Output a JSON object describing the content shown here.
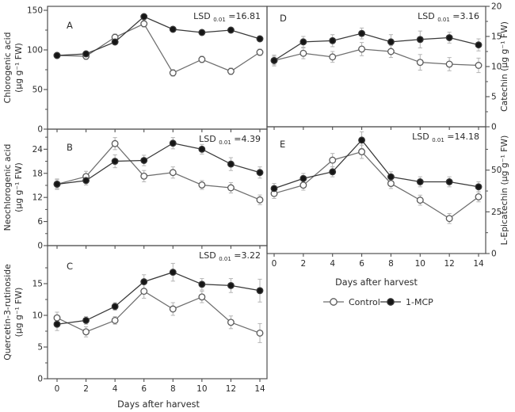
{
  "figure": {
    "background": "#ffffff",
    "x_axis_label": "Days after harvest",
    "x_ticks": [
      0,
      2,
      4,
      6,
      8,
      10,
      12,
      14
    ],
    "legend": [
      {
        "label": "Control",
        "marker": "open-circle"
      },
      {
        "label": "1-MCP",
        "marker": "filled-circle"
      }
    ]
  },
  "colors": {
    "axis": "#4f4f4f",
    "text": "#2b2b2b",
    "control_line": "#6e6e6e",
    "control_fill": "#ffffff",
    "control_stroke": "#5a5a5a",
    "mcp_line": "#383838",
    "mcp_fill": "#161616",
    "error_bar": "#b4b4b4"
  },
  "chart_data": [
    {
      "type": "line",
      "panel": "A",
      "ylabel_lines": [
        "Chlorogenic acid",
        "(µg g⁻¹ FW)"
      ],
      "lsd": {
        "prefix": "LSD",
        "sub": "0.01",
        "value": "=16.81"
      },
      "x": [
        0,
        2,
        4,
        6,
        8,
        10,
        12,
        14
      ],
      "ylim": [
        0,
        155
      ],
      "yticks": [
        0,
        50,
        100,
        150
      ],
      "yminor": [
        25,
        75,
        125
      ],
      "series": [
        {
          "name": "Control",
          "values": [
            93,
            92,
            116,
            133,
            71,
            88,
            73,
            97
          ],
          "err": [
            3,
            4,
            4,
            4,
            4,
            4,
            4,
            4
          ]
        },
        {
          "name": "1-MCP",
          "values": [
            93,
            95,
            110,
            142,
            126,
            122,
            125,
            114
          ],
          "err": [
            3,
            3,
            3,
            3,
            3,
            3,
            3,
            3
          ]
        }
      ]
    },
    {
      "type": "line",
      "panel": "B",
      "ylabel_lines": [
        "Neochlorogenic acid",
        "(µg g⁻¹ FW)"
      ],
      "lsd": {
        "prefix": "LSD",
        "sub": "0.01",
        "value": "=4.39"
      },
      "x": [
        0,
        2,
        4,
        6,
        8,
        10,
        12,
        14
      ],
      "ylim": [
        0,
        29
      ],
      "yticks": [
        0,
        6,
        12,
        18,
        24
      ],
      "yminor": [
        3,
        9,
        15,
        21,
        27
      ],
      "series": [
        {
          "name": "Control",
          "values": [
            15.3,
            17.2,
            25.4,
            17.3,
            18.2,
            15.1,
            14.4,
            11.4
          ],
          "err": [
            1.3,
            1.3,
            1.5,
            1.4,
            1.4,
            1.1,
            1.3,
            1.2
          ]
        },
        {
          "name": "1-MCP",
          "values": [
            15.3,
            16.2,
            21.0,
            21.2,
            25.5,
            24.0,
            20.3,
            18.2
          ],
          "err": [
            1.1,
            1.1,
            1.6,
            1.3,
            1.4,
            1.2,
            1.6,
            1.4
          ]
        }
      ]
    },
    {
      "type": "line",
      "panel": "C",
      "ylabel_lines": [
        "Quercetin-3-rutinoside",
        "(µg g⁻¹ FW)"
      ],
      "lsd": {
        "prefix": "LSD",
        "sub": "0.01",
        "value": "=3.22"
      },
      "x": [
        0,
        2,
        4,
        6,
        8,
        10,
        12,
        14
      ],
      "ylim": [
        0,
        21
      ],
      "yticks": [
        0,
        5,
        10,
        15
      ],
      "yminor": [
        2.5,
        7.5,
        12.5,
        17.5
      ],
      "series": [
        {
          "name": "Control",
          "values": [
            9.6,
            7.4,
            9.2,
            13.8,
            11.0,
            12.9,
            8.9,
            7.2
          ],
          "err": [
            0.9,
            0.8,
            0.6,
            1.1,
            1.0,
            0.9,
            1.0,
            1.5
          ]
        },
        {
          "name": "1-MCP",
          "values": [
            8.6,
            9.2,
            11.4,
            15.3,
            16.8,
            14.9,
            14.7,
            13.9
          ],
          "err": [
            1.0,
            0.6,
            0.6,
            1.1,
            1.4,
            0.9,
            1.1,
            1.8
          ]
        }
      ]
    },
    {
      "type": "line",
      "panel": "D",
      "ylabel_lines": [
        "Catechin (µg g⁻¹ FW)"
      ],
      "lsd": {
        "prefix": "LSD",
        "sub": "0.01",
        "value": "=3.16"
      },
      "x": [
        0,
        2,
        4,
        6,
        8,
        10,
        12,
        14
      ],
      "ylim": [
        0,
        20
      ],
      "yticks": [
        0,
        5,
        10,
        15,
        20
      ],
      "yminor": [
        2.5,
        7.5,
        12.5,
        17.5
      ],
      "series": [
        {
          "name": "Control",
          "values": [
            11.0,
            12.2,
            11.6,
            12.9,
            12.5,
            10.7,
            10.4,
            10.2
          ],
          "err": [
            0.9,
            0.9,
            0.9,
            1.1,
            1.0,
            1.3,
            1.1,
            1.2
          ]
        },
        {
          "name": "1-MCP",
          "values": [
            11.0,
            14.1,
            14.3,
            15.5,
            14.1,
            14.5,
            14.8,
            13.6
          ],
          "err": [
            0.7,
            0.9,
            1.0,
            0.9,
            1.2,
            1.4,
            0.9,
            1.0
          ]
        }
      ]
    },
    {
      "type": "line",
      "panel": "E",
      "ylabel_lines": [
        "L-Epicatechin (µg g⁻¹ FW)"
      ],
      "lsd": {
        "prefix": "LSD",
        "sub": "0.01",
        "value": "=14.18"
      },
      "x": [
        0,
        2,
        4,
        6,
        8,
        10,
        12,
        14
      ],
      "ylim": [
        0,
        76
      ],
      "yticks": [
        0,
        25,
        50
      ],
      "yminor": [
        12.5,
        37.5,
        62.5
      ],
      "series": [
        {
          "name": "Control",
          "values": [
            36,
            41,
            56,
            61,
            42,
            32,
            21,
            34
          ],
          "err": [
            3,
            3,
            4,
            4,
            3,
            3,
            3,
            3
          ]
        },
        {
          "name": "1-MCP",
          "values": [
            39,
            45,
            49,
            68,
            46,
            43,
            43,
            40
          ],
          "err": [
            3,
            3,
            3,
            5,
            3,
            3,
            3,
            3
          ]
        }
      ]
    }
  ]
}
